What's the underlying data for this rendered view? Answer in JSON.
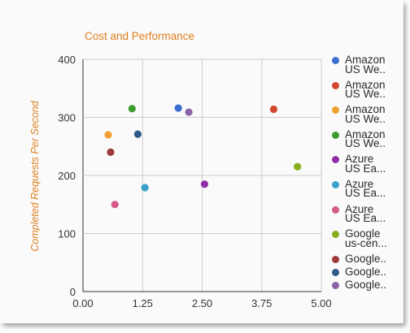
{
  "chart_data": {
    "type": "scatter",
    "title": "Cost and Performance",
    "xlabel": "",
    "ylabel": "Completed Requests Per Second",
    "xlim": [
      0,
      5
    ],
    "ylim": [
      0,
      400
    ],
    "x_ticks": [
      "0.00",
      "1.25",
      "2.50",
      "3.75",
      "5.00"
    ],
    "y_ticks": [
      "0",
      "100",
      "200",
      "300",
      "400"
    ],
    "grid": true,
    "legend_position": "right",
    "series": [
      {
        "name": "Amazon\nUS We..",
        "color": "#3a6fd1",
        "points": [
          {
            "x": 2.0,
            "y": 316
          }
        ]
      },
      {
        "name": "Amazon\nUS We..",
        "color": "#d3472e",
        "points": [
          {
            "x": 4.0,
            "y": 314
          }
        ]
      },
      {
        "name": "Amazon\nUS We..",
        "color": "#f0a030",
        "points": [
          {
            "x": 0.53,
            "y": 270
          }
        ]
      },
      {
        "name": "Amazon\nUS We..",
        "color": "#3e9b2e",
        "points": [
          {
            "x": 1.03,
            "y": 315
          }
        ]
      },
      {
        "name": "Azure\nUS Ea...",
        "color": "#8e2fa8",
        "points": [
          {
            "x": 2.55,
            "y": 185
          }
        ]
      },
      {
        "name": "Azure\nUS Ea...",
        "color": "#3aa2c8",
        "points": [
          {
            "x": 1.3,
            "y": 179
          }
        ]
      },
      {
        "name": "Azure\nUS Ea...",
        "color": "#d55b8a",
        "points": [
          {
            "x": 0.67,
            "y": 150
          }
        ]
      },
      {
        "name": "Google\nus-cen...",
        "color": "#86ae1e",
        "points": [
          {
            "x": 4.5,
            "y": 215
          }
        ]
      },
      {
        "name": "Google..",
        "color": "#9e3a3a",
        "points": [
          {
            "x": 0.58,
            "y": 240
          }
        ]
      },
      {
        "name": "Google..",
        "color": "#2f5987",
        "points": [
          {
            "x": 1.15,
            "y": 271
          }
        ]
      },
      {
        "name": "Google..",
        "color": "#8a62a8",
        "points": [
          {
            "x": 2.22,
            "y": 309
          }
        ]
      }
    ]
  },
  "colors": {
    "title": "#e07f1f",
    "axis_text": "#333333",
    "grid": "#cccccc"
  }
}
